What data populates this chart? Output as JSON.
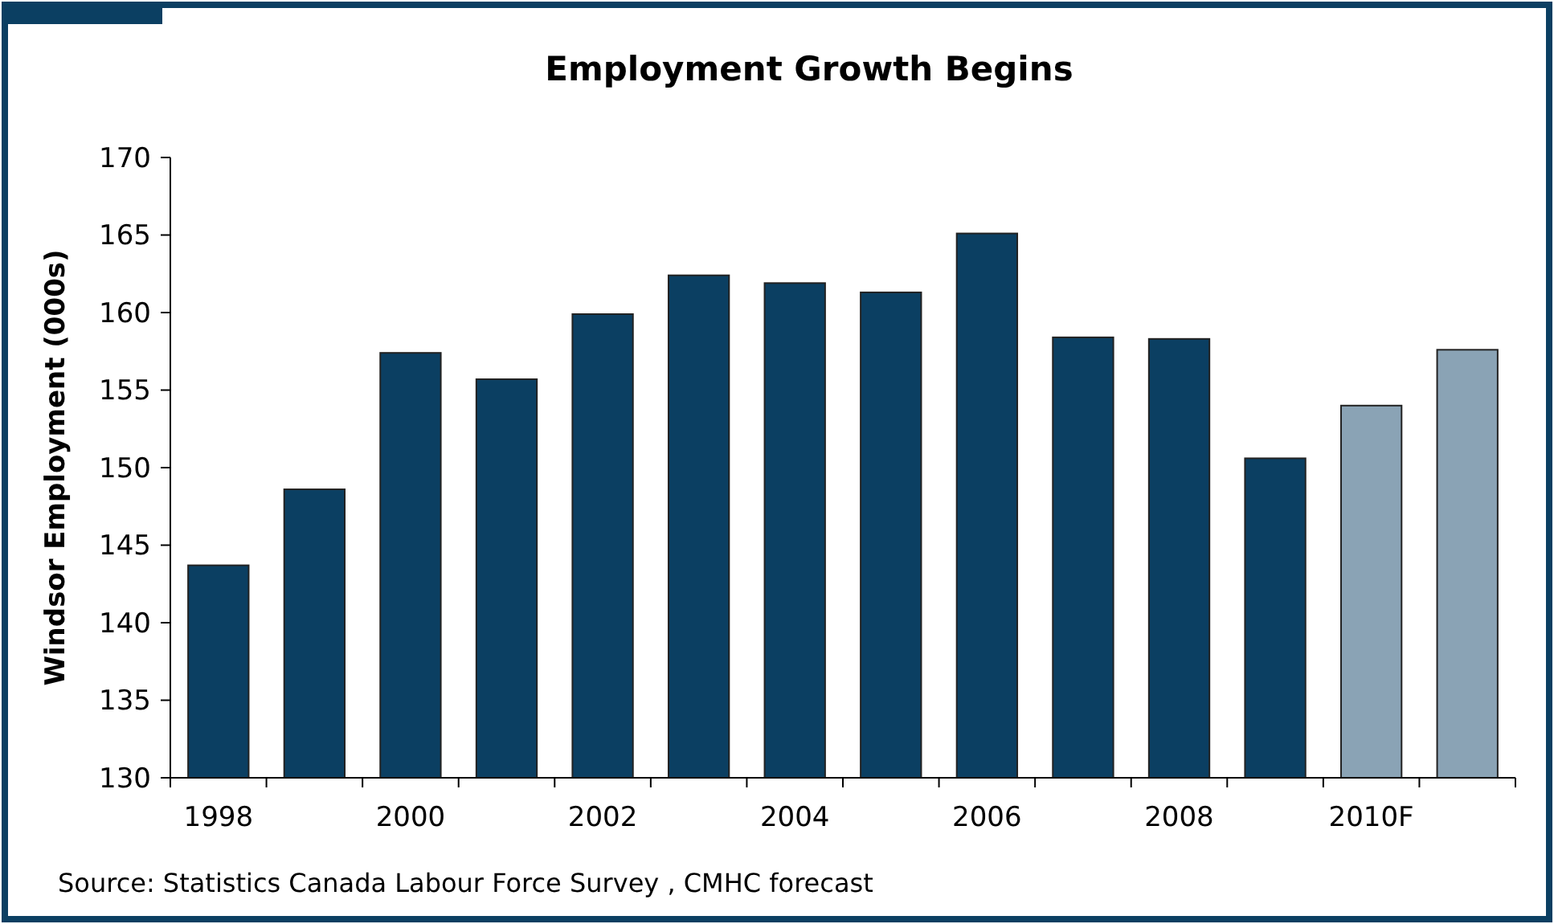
{
  "chart_data": {
    "type": "bar",
    "title": "Employment Growth Begins",
    "ylabel": "Windsor Employment (000s)",
    "categories": [
      "1998",
      null,
      "2000",
      null,
      "2002",
      null,
      "2004",
      null,
      "2006",
      null,
      "2008",
      null,
      "2010F",
      null
    ],
    "values": [
      143.7,
      148.6,
      157.4,
      155.7,
      159.9,
      162.4,
      161.9,
      161.3,
      165.1,
      158.4,
      158.3,
      150.6,
      154.0,
      157.6
    ],
    "colors": [
      "#0b3f62",
      "#0b3f62",
      "#0b3f62",
      "#0b3f62",
      "#0b3f62",
      "#0b3f62",
      "#0b3f62",
      "#0b3f62",
      "#0b3f62",
      "#0b3f62",
      "#0b3f62",
      "#0b3f62",
      "#8aa3b5",
      "#8aa3b5"
    ],
    "ylim": [
      130,
      170
    ],
    "yticks": [
      130,
      135,
      140,
      145,
      150,
      155,
      160,
      165,
      170
    ],
    "grid": false,
    "annotations": [
      "Source: Statistics Canada Labour Force Survey , CMHC forecast"
    ]
  }
}
